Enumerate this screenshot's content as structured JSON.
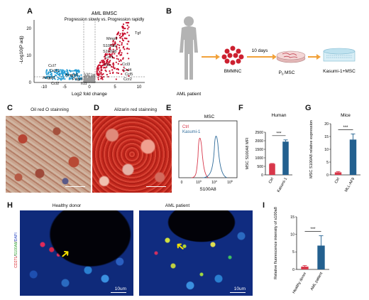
{
  "letters": [
    "A",
    "B",
    "C",
    "D",
    "E",
    "F",
    "G",
    "H",
    "I"
  ],
  "volcano": {
    "title": "AML BMSC",
    "subtitle": "Progression slowly vs. Progression rapidly",
    "xlabel": "Log2 fold change",
    "ylabel": "-Log10(P adj)",
    "xticks": [
      "-10",
      "-5",
      "0",
      "5",
      "10"
    ],
    "yticks": [
      "0",
      "10",
      "20"
    ],
    "up_genes": [
      "Tgf",
      "Mmp9",
      "S100a9",
      "S100a8",
      "Ccr1",
      "Il1b",
      "Ccl3",
      "Ccl4",
      "Ccl5",
      "Ccr2"
    ],
    "down_genes": [
      "Ccl7",
      "Ccl11",
      "Angptl1",
      "Angpt1",
      "Ccl2",
      "Pdgfd",
      "Il11"
    ],
    "colors": {
      "up": "#c8102e",
      "down": "#2a9fd6",
      "ns": "#9a9a9a"
    }
  },
  "workflow": {
    "patient": "AML patient",
    "bmmnc": "BMMNC",
    "days": "10 days",
    "p0": "P",
    "p0_sub": "0",
    "msc": "MSC",
    "coculture": "Kasumi-1+MSC"
  },
  "staining": {
    "c_title": "Oil red O stainning",
    "d_title": "Alizarin red stainning"
  },
  "flow": {
    "title": "MSC",
    "legend": [
      "Ctrl",
      "Kasumi-1"
    ],
    "xlabel": "S100A8",
    "xticks": [
      "0",
      "10",
      "10",
      "10"
    ],
    "xtick_exp": [
      "",
      "3",
      "4",
      "5"
    ],
    "colors": {
      "ctrl": "#d8374a",
      "kasumi": "#2e6b9a"
    }
  },
  "chart_data": [
    {
      "type": "bar",
      "title": "Human",
      "ylabel": "MSC S100A8 MFI",
      "categories": [
        "Ctrl",
        "Kasumi-1"
      ],
      "values": [
        650,
        1950
      ],
      "errors": [
        20,
        100
      ],
      "ylim": [
        0,
        2500
      ],
      "yticks": [
        "0",
        "500",
        "1000",
        "1500",
        "2000",
        "2500"
      ],
      "significance": "***",
      "colors": [
        "#d8374a",
        "#23608f"
      ]
    },
    {
      "type": "bar",
      "title": "Mice",
      "ylabel": "MSC S100A8 relative expression",
      "categories": [
        "Ctrl",
        "MLL-AF9"
      ],
      "values": [
        1,
        13.8
      ],
      "errors": [
        0.3,
        2.2
      ],
      "ylim": [
        0,
        20
      ],
      "yticks": [
        "0",
        "5",
        "10",
        "15",
        "20"
      ],
      "significance": "***",
      "colors": [
        "#d8374a",
        "#23608f"
      ]
    },
    {
      "type": "bar",
      "title": "",
      "ylabel": "Relative fluorescence intensity of s100a8",
      "categories": [
        "Healthy donor",
        "AML patient"
      ],
      "values": [
        0.8,
        6.8
      ],
      "errors": [
        0.3,
        2.8
      ],
      "ylim": [
        0,
        15
      ],
      "yticks": [
        "0",
        "5",
        "10",
        "15"
      ],
      "significance": "***",
      "colors": [
        "#d8374a",
        "#23608f"
      ]
    }
  ],
  "fluor": {
    "healthy": "Healthy donor",
    "aml": "AML patient",
    "scale": "10um",
    "ylab_red": "CD271",
    "ylab_green": "S100A8",
    "ylab_blue": "DAPI"
  }
}
